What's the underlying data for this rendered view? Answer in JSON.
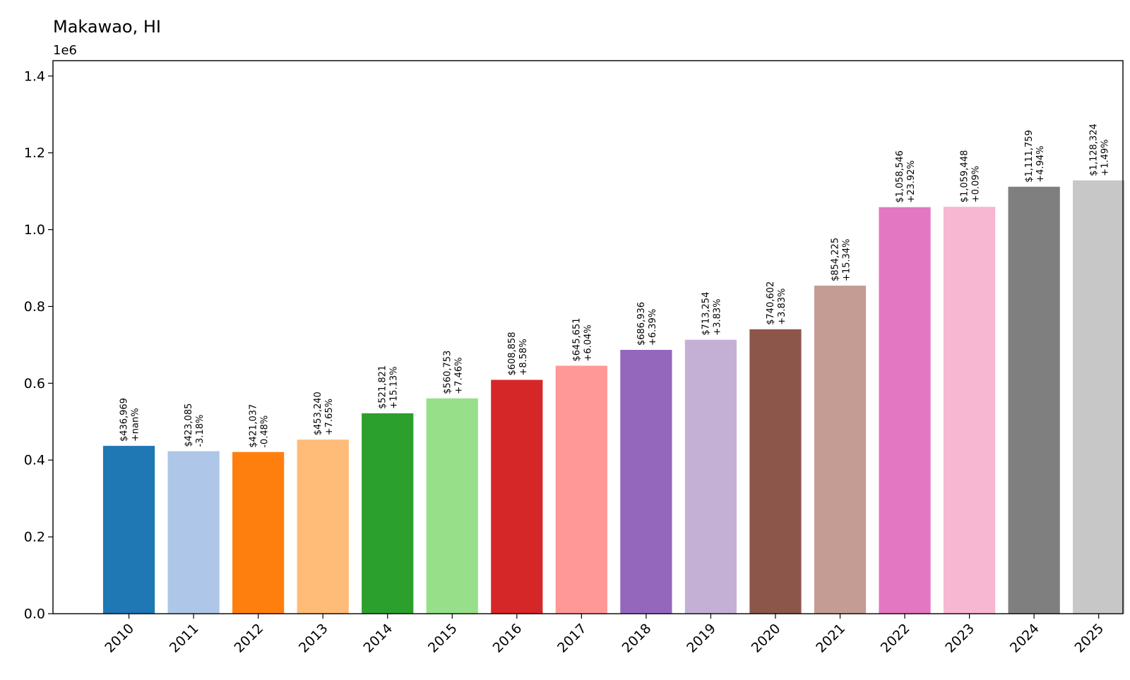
{
  "chart_data": {
    "type": "bar",
    "title": "Makawao, HI",
    "y_offset_label": "1e6",
    "xlabel": "",
    "ylabel": "",
    "ylim": [
      0,
      1.44
    ],
    "yticks": [
      0.0,
      0.2,
      0.4,
      0.6,
      0.8,
      1.0,
      1.2,
      1.4
    ],
    "ytick_labels": [
      "0.0",
      "0.2",
      "0.4",
      "0.6",
      "0.8",
      "1.0",
      "1.2",
      "1.4"
    ],
    "categories": [
      "2010",
      "2011",
      "2012",
      "2013",
      "2014",
      "2015",
      "2016",
      "2017",
      "2018",
      "2019",
      "2020",
      "2021",
      "2022",
      "2023",
      "2024",
      "2025"
    ],
    "values": [
      436969,
      423085,
      421037,
      453240,
      521821,
      560753,
      608858,
      645651,
      686936,
      713254,
      740602,
      854225,
      1058546,
      1059448,
      1111759,
      1128324
    ],
    "value_labels": [
      "$436,969",
      "$423,085",
      "$421,037",
      "$453,240",
      "$521,821",
      "$560,753",
      "$608,858",
      "$645,651",
      "$686,936",
      "$713,254",
      "$740,602",
      "$854,225",
      "$1,058,546",
      "$1,059,448",
      "$1,111,759",
      "$1,128,324"
    ],
    "change_labels": [
      "+nan%",
      "-3.18%",
      "-0.48%",
      "+7.65%",
      "+15.13%",
      "+7.46%",
      "+8.58%",
      "+6.04%",
      "+6.39%",
      "+3.83%",
      "+3.83%",
      "+15.34%",
      "+23.92%",
      "+0.09%",
      "+4.94%",
      "+1.49%"
    ],
    "colors": [
      "#1f77b4",
      "#aec7e8",
      "#ff7f0e",
      "#ffbb78",
      "#2ca02c",
      "#98df8a",
      "#d62728",
      "#ff9896",
      "#9467bd",
      "#c5b0d5",
      "#8c564b",
      "#c49c94",
      "#e377c2",
      "#f7b6d2",
      "#7f7f7f",
      "#c7c7c7"
    ],
    "grid": false,
    "legend": "none"
  }
}
